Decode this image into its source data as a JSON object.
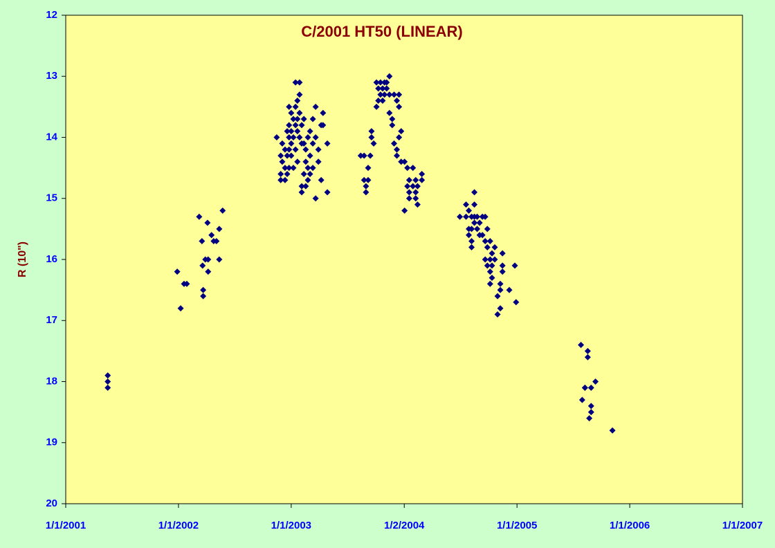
{
  "chart_data": {
    "type": "scatter",
    "title": "C/2001 HT50 (LINEAR)",
    "y_label": "R (10\")",
    "color": "#000080",
    "y_reversed": true,
    "xlim": [
      "2001-01-01",
      "2007-01-01"
    ],
    "xticks": [
      {
        "value": "2001-01-01",
        "label": "1/1/2001"
      },
      {
        "value": "2002-01-01",
        "label": "1/1/2002"
      },
      {
        "value": "2003-01-01",
        "label": "1/1/2003"
      },
      {
        "value": "2004-01-02",
        "label": "1/2/2004"
      },
      {
        "value": "2005-01-01",
        "label": "1/1/2005"
      },
      {
        "value": "2006-01-01",
        "label": "1/1/2006"
      },
      {
        "value": "2007-01-01",
        "label": "1/1/2007"
      }
    ],
    "ylim": [
      12,
      20
    ],
    "yticks": [
      12,
      13,
      14,
      15,
      16,
      17,
      18,
      19,
      20
    ],
    "x": [
      "2001-05-17",
      "2001-05-17",
      "2001-05-17",
      "2001-12-28",
      "2002-01-08",
      "2002-01-19",
      "2002-01-28",
      "2002-03-09",
      "2002-03-18",
      "2002-03-20",
      "2002-03-22",
      "2002-03-22",
      "2002-03-29",
      "2002-04-05",
      "2002-04-07",
      "2002-04-07",
      "2002-04-18",
      "2002-04-25",
      "2002-05-04",
      "2002-05-13",
      "2002-05-13",
      "2002-05-24",
      "2002-11-15",
      "2002-11-28",
      "2002-11-28",
      "2002-11-28",
      "2002-12-03",
      "2002-12-03",
      "2002-12-12",
      "2002-12-12",
      "2002-12-12",
      "2002-12-19",
      "2002-12-19",
      "2002-12-19",
      "2002-12-25",
      "2002-12-25",
      "2002-12-25",
      "2002-12-25",
      "2002-12-25",
      "2003-01-01",
      "2003-01-01",
      "2003-01-01",
      "2003-01-01",
      "2003-01-08",
      "2003-01-08",
      "2003-01-08",
      "2003-01-15",
      "2003-01-15",
      "2003-01-15",
      "2003-01-15",
      "2003-01-21",
      "2003-01-21",
      "2003-01-21",
      "2003-01-21",
      "2003-01-28",
      "2003-01-28",
      "2003-01-28",
      "2003-01-28",
      "2003-02-04",
      "2003-02-04",
      "2003-02-04",
      "2003-02-04",
      "2003-02-11",
      "2003-02-11",
      "2003-02-11",
      "2003-02-17",
      "2003-02-17",
      "2003-02-17",
      "2003-02-24",
      "2003-02-24",
      "2003-02-24",
      "2003-03-03",
      "2003-03-03",
      "2003-03-03",
      "2003-03-12",
      "2003-03-12",
      "2003-03-12",
      "2003-03-21",
      "2003-03-21",
      "2003-03-21",
      "2003-03-30",
      "2003-03-30",
      "2003-04-08",
      "2003-04-08",
      "2003-04-14",
      "2003-04-14",
      "2003-04-28",
      "2003-04-28",
      "2003-08-14",
      "2003-08-25",
      "2003-08-25",
      "2003-08-31",
      "2003-08-31",
      "2003-09-07",
      "2003-09-07",
      "2003-09-14",
      "2003-09-18",
      "2003-09-18",
      "2003-09-25",
      "2003-10-04",
      "2003-10-04",
      "2003-10-10",
      "2003-10-10",
      "2003-10-17",
      "2003-10-17",
      "2003-10-24",
      "2003-10-24",
      "2003-10-30",
      "2003-10-30",
      "2003-11-06",
      "2003-11-06",
      "2003-11-15",
      "2003-11-15",
      "2003-11-15",
      "2003-11-24",
      "2003-11-24",
      "2003-11-30",
      "2003-11-30",
      "2003-12-09",
      "2003-12-09",
      "2003-12-09",
      "2003-12-16",
      "2003-12-16",
      "2003-12-16",
      "2003-12-23",
      "2003-12-23",
      "2004-01-03",
      "2004-01-03",
      "2004-01-12",
      "2004-01-12",
      "2004-01-18",
      "2004-01-18",
      "2004-01-18",
      "2004-01-30",
      "2004-01-30",
      "2004-02-08",
      "2004-02-08",
      "2004-02-08",
      "2004-02-14",
      "2004-02-14",
      "2004-02-28",
      "2004-02-28",
      "2004-06-30",
      "2004-07-20",
      "2004-07-20",
      "2004-07-29",
      "2004-07-29",
      "2004-07-29",
      "2004-08-07",
      "2004-08-07",
      "2004-08-07",
      "2004-08-07",
      "2004-08-16",
      "2004-08-16",
      "2004-08-16",
      "2004-08-16",
      "2004-08-25",
      "2004-08-25",
      "2004-09-02",
      "2004-09-02",
      "2004-09-11",
      "2004-09-11",
      "2004-09-20",
      "2004-09-20",
      "2004-09-20",
      "2004-09-27",
      "2004-09-27",
      "2004-09-27",
      "2004-10-06",
      "2004-10-06",
      "2004-10-06",
      "2004-10-06",
      "2004-10-12",
      "2004-10-12",
      "2004-10-12",
      "2004-10-21",
      "2004-10-21",
      "2004-10-30",
      "2004-10-30",
      "2004-11-08",
      "2004-11-08",
      "2004-11-08",
      "2004-11-15",
      "2004-11-15",
      "2004-11-15",
      "2004-12-07",
      "2004-12-25",
      "2004-12-29",
      "2005-07-27",
      "2005-07-31",
      "2005-08-09",
      "2005-08-09",
      "2005-08-18",
      "2005-08-18",
      "2005-08-23",
      "2005-08-29",
      "2005-08-29",
      "2005-08-29",
      "2005-09-12",
      "2005-11-06"
    ],
    "values": [
      17.9,
      18.0,
      18.1,
      16.2,
      16.8,
      16.4,
      16.4,
      15.3,
      15.7,
      16.1,
      16.5,
      16.6,
      16.0,
      15.4,
      16.0,
      16.2,
      15.6,
      15.7,
      15.7,
      15.5,
      16.0,
      15.2,
      14.0,
      14.3,
      14.6,
      14.7,
      14.1,
      14.4,
      14.7,
      14.2,
      14.5,
      13.9,
      14.3,
      14.6,
      13.5,
      13.8,
      14.0,
      14.2,
      14.5,
      13.6,
      13.9,
      14.1,
      14.3,
      13.7,
      14.0,
      14.5,
      13.1,
      13.5,
      13.8,
      14.2,
      13.4,
      13.7,
      13.9,
      14.4,
      13.1,
      13.3,
      13.6,
      14.0,
      13.8,
      14.1,
      14.8,
      14.9,
      13.7,
      14.1,
      14.6,
      14.2,
      14.4,
      14.8,
      14.0,
      14.5,
      14.7,
      13.9,
      14.3,
      14.6,
      13.7,
      14.1,
      14.5,
      13.5,
      14.0,
      15.0,
      14.2,
      14.4,
      13.8,
      14.7,
      13.6,
      13.8,
      14.1,
      14.9,
      14.3,
      14.3,
      14.7,
      14.8,
      14.9,
      14.5,
      14.7,
      14.3,
      14.0,
      13.9,
      14.1,
      13.1,
      13.5,
      13.2,
      13.4,
      13.1,
      13.3,
      13.2,
      13.4,
      13.1,
      13.3,
      13.1,
      13.2,
      13.0,
      13.3,
      13.6,
      13.7,
      13.8,
      13.3,
      14.1,
      14.2,
      14.3,
      13.4,
      13.5,
      13.3,
      14.0,
      14.4,
      13.9,
      14.4,
      15.2,
      14.5,
      14.8,
      14.7,
      15.0,
      14.9,
      14.5,
      14.8,
      14.9,
      15.0,
      14.7,
      15.1,
      14.8,
      14.6,
      14.7,
      15.3,
      15.1,
      15.3,
      15.5,
      15.6,
      15.2,
      15.3,
      15.5,
      15.7,
      15.8,
      14.9,
      15.1,
      15.3,
      15.4,
      15.3,
      15.5,
      15.6,
      15.4,
      15.3,
      15.6,
      15.3,
      15.7,
      16.0,
      15.5,
      15.8,
      16.1,
      15.7,
      16.0,
      16.2,
      16.4,
      15.9,
      16.1,
      16.3,
      15.8,
      16.0,
      16.6,
      16.9,
      16.4,
      16.5,
      16.8,
      15.9,
      16.2,
      16.1,
      16.5,
      16.1,
      16.7,
      17.4,
      18.3,
      18.1,
      18.1,
      17.5,
      17.6,
      18.6,
      18.1,
      18.4,
      18.5,
      18.0,
      18.8
    ]
  }
}
